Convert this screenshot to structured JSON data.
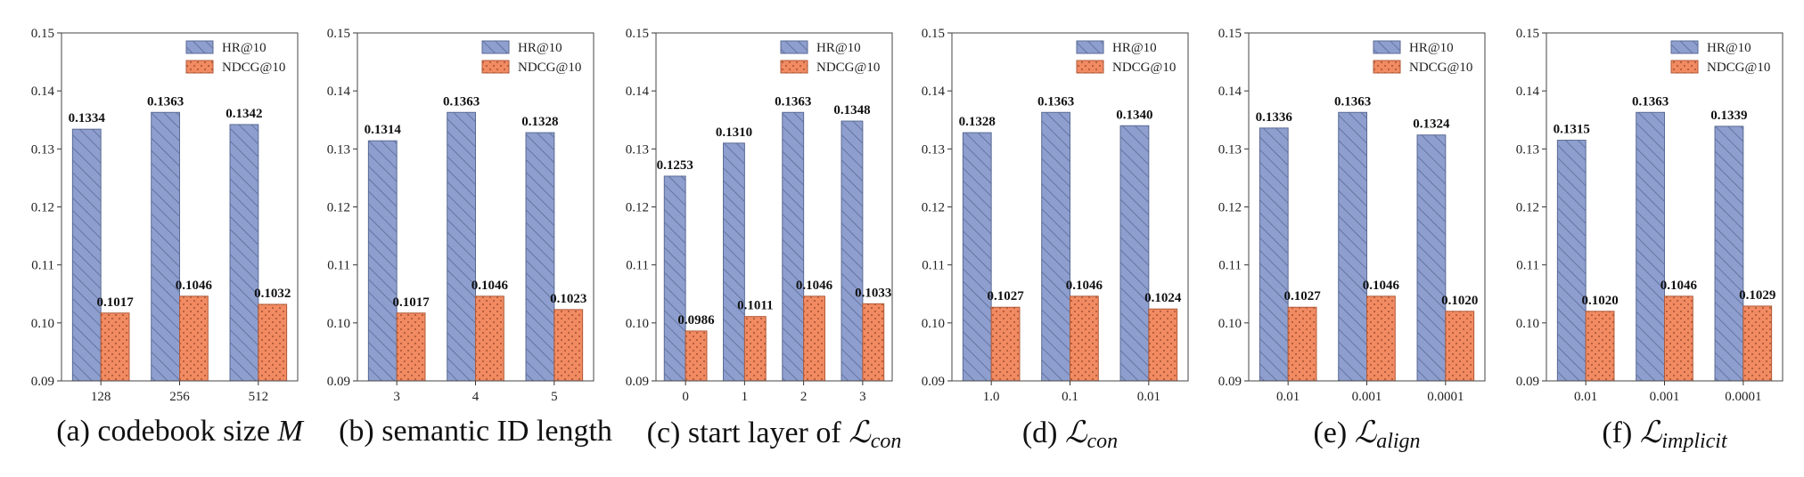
{
  "colors": {
    "hr": "#8e9fcf",
    "hr_edge": "#5a6a94",
    "ndcg": "#f28b62",
    "ndcg_edge": "#b05a3a"
  },
  "legend": {
    "hr": "HR@10",
    "ndcg": "NDCG@10"
  },
  "chart_data": [
    {
      "type": "bar",
      "ylim": [
        0.09,
        0.15
      ],
      "yticks": [
        "0.09",
        "0.10",
        "0.11",
        "0.12",
        "0.13",
        "0.14",
        "0.15"
      ],
      "categories": [
        "128",
        "256",
        "512"
      ],
      "series": [
        {
          "name": "HR@10",
          "values": [
            0.1334,
            0.1363,
            0.1342
          ],
          "labels": [
            "0.1334",
            "0.1363",
            "0.1342"
          ]
        },
        {
          "name": "NDCG@10",
          "values": [
            0.1017,
            0.1046,
            0.1032
          ],
          "labels": [
            "0.1017",
            "0.1046",
            "0.1032"
          ]
        }
      ],
      "caption": {
        "prefix": "(a) codebook size ",
        "math": "M",
        "sub": ""
      },
      "legend_position": "top-right"
    },
    {
      "type": "bar",
      "ylim": [
        0.09,
        0.15
      ],
      "yticks": [
        "0.09",
        "0.10",
        "0.11",
        "0.12",
        "0.13",
        "0.14",
        "0.15"
      ],
      "categories": [
        "3",
        "4",
        "5"
      ],
      "series": [
        {
          "name": "HR@10",
          "values": [
            0.1314,
            0.1363,
            0.1328
          ],
          "labels": [
            "0.1314",
            "0.1363",
            "0.1328"
          ]
        },
        {
          "name": "NDCG@10",
          "values": [
            0.1017,
            0.1046,
            0.1023
          ],
          "labels": [
            "0.1017",
            "0.1046",
            "0.1023"
          ]
        }
      ],
      "caption": {
        "prefix": "(b) semantic ID length",
        "math": "",
        "sub": ""
      },
      "legend_position": "top-right"
    },
    {
      "type": "bar",
      "ylim": [
        0.09,
        0.15
      ],
      "yticks": [
        "0.09",
        "0.10",
        "0.11",
        "0.12",
        "0.13",
        "0.14",
        "0.15"
      ],
      "categories": [
        "0",
        "1",
        "2",
        "3"
      ],
      "series": [
        {
          "name": "HR@10",
          "values": [
            0.1253,
            0.131,
            0.1363,
            0.1348
          ],
          "labels": [
            "0.1253",
            "0.1310",
            "0.1363",
            "0.1348"
          ]
        },
        {
          "name": "NDCG@10",
          "values": [
            0.0986,
            0.1011,
            0.1046,
            0.1033
          ],
          "labels": [
            "0.0986",
            "0.1011",
            "0.1046",
            "0.1033"
          ]
        }
      ],
      "caption": {
        "prefix": "(c) start layer of ",
        "math": "ℒ",
        "sub": "con"
      },
      "legend_position": "top-right"
    },
    {
      "type": "bar",
      "ylim": [
        0.09,
        0.15
      ],
      "yticks": [
        "0.09",
        "0.10",
        "0.11",
        "0.12",
        "0.13",
        "0.14",
        "0.15"
      ],
      "categories": [
        "1.0",
        "0.1",
        "0.01"
      ],
      "series": [
        {
          "name": "HR@10",
          "values": [
            0.1328,
            0.1363,
            0.134
          ],
          "labels": [
            "0.1328",
            "0.1363",
            "0.1340"
          ]
        },
        {
          "name": "NDCG@10",
          "values": [
            0.1027,
            0.1046,
            0.1024
          ],
          "labels": [
            "0.1027",
            "0.1046",
            "0.1024"
          ]
        }
      ],
      "caption": {
        "prefix": "(d) ",
        "math": "ℒ",
        "sub": "con"
      },
      "legend_position": "top-right"
    },
    {
      "type": "bar",
      "ylim": [
        0.09,
        0.15
      ],
      "yticks": [
        "0.09",
        "0.10",
        "0.11",
        "0.12",
        "0.13",
        "0.14",
        "0.15"
      ],
      "categories": [
        "0.01",
        "0.001",
        "0.0001"
      ],
      "series": [
        {
          "name": "HR@10",
          "values": [
            0.1336,
            0.1363,
            0.1324
          ],
          "labels": [
            "0.1336",
            "0.1363",
            "0.1324"
          ]
        },
        {
          "name": "NDCG@10",
          "values": [
            0.1027,
            0.1046,
            0.102
          ],
          "labels": [
            "0.1027",
            "0.1046",
            "0.1020"
          ]
        }
      ],
      "caption": {
        "prefix": "(e) ",
        "math": "ℒ",
        "sub": "align"
      },
      "legend_position": "top-right"
    },
    {
      "type": "bar",
      "ylim": [
        0.09,
        0.15
      ],
      "yticks": [
        "0.09",
        "0.10",
        "0.11",
        "0.12",
        "0.13",
        "0.14",
        "0.15"
      ],
      "categories": [
        "0.01",
        "0.001",
        "0.0001"
      ],
      "series": [
        {
          "name": "HR@10",
          "values": [
            0.1315,
            0.1363,
            0.1339
          ],
          "labels": [
            "0.1315",
            "0.1363",
            "0.1339"
          ]
        },
        {
          "name": "NDCG@10",
          "values": [
            0.102,
            0.1046,
            0.1029
          ],
          "labels": [
            "0.1020",
            "0.1046",
            "0.1029"
          ]
        }
      ],
      "caption": {
        "prefix": "(f) ",
        "math": "ℒ",
        "sub": "implicit"
      },
      "legend_position": "top-right"
    }
  ]
}
